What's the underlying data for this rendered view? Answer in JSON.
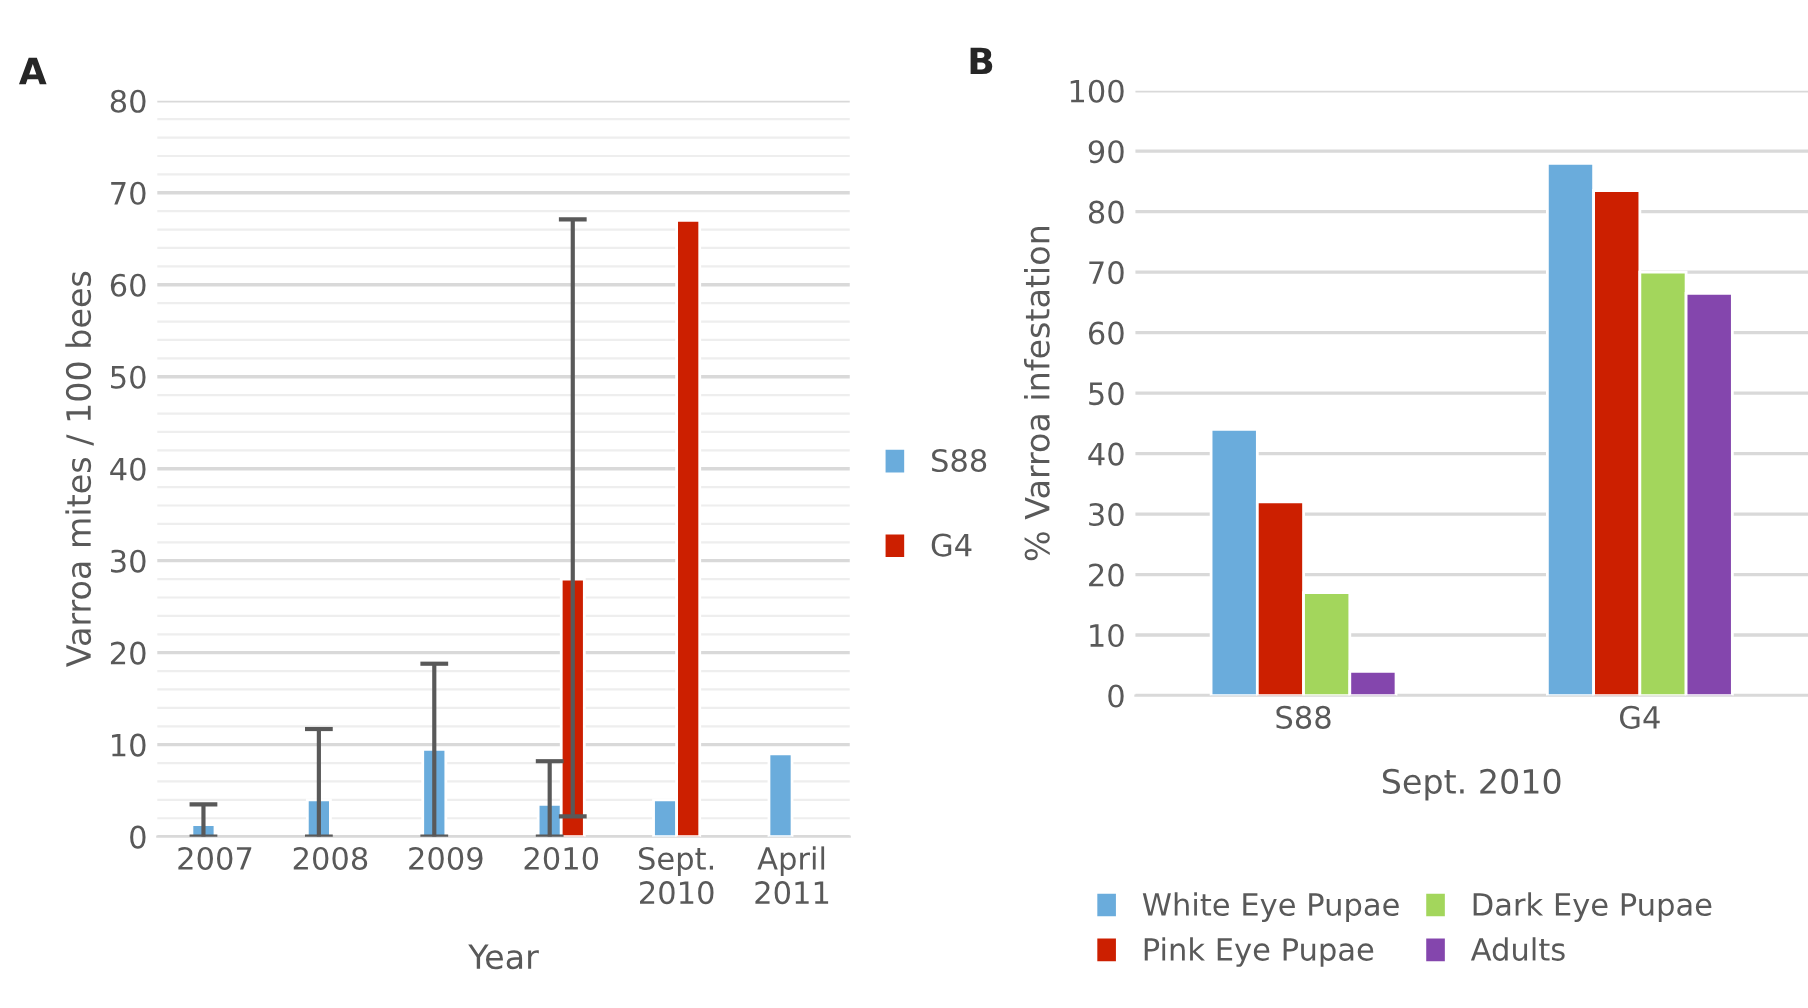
{
  "chart_data": [
    {
      "type": "bar",
      "title": "A",
      "xlabel": "Year",
      "ylabel": "Varroa mites / 100 bees",
      "categories": [
        "2007",
        "2008",
        "2009",
        "2010",
        "Sept.\n2010",
        "April\n2011"
      ],
      "series": [
        {
          "name": "S88",
          "color": "#6aacdc",
          "values": [
            1.3,
            4,
            9.5,
            3.5,
            4,
            9
          ],
          "errors": [
            [
              0,
              3.5
            ],
            [
              0,
              11.7
            ],
            [
              0,
              18.8
            ],
            [
              0,
              8.2
            ],
            null,
            null
          ]
        },
        {
          "name": "G4",
          "color": "#cc1f00",
          "values": [
            null,
            null,
            null,
            28,
            67,
            null
          ],
          "errors": [
            null,
            null,
            null,
            [
              2.2,
              67.1
            ],
            null,
            null
          ]
        }
      ],
      "ylim": [
        0,
        80
      ],
      "yticks": [
        0,
        {
          "value": 2,
          "label": null
        },
        {
          "value": 4,
          "label": null
        },
        {
          "value": 6,
          "label": null
        },
        {
          "value": 8,
          "label": null
        },
        10,
        {
          "value": 12,
          "label": null
        },
        {
          "value": 14,
          "label": null
        },
        {
          "value": 16,
          "label": null
        },
        {
          "value": 18,
          "label": null
        },
        20,
        {
          "value": 22,
          "label": null
        },
        {
          "value": 24,
          "label": null
        },
        {
          "value": 26,
          "label": null
        },
        {
          "value": 28,
          "label": null
        },
        30,
        {
          "value": 32,
          "label": null
        },
        {
          "value": 34,
          "label": null
        },
        {
          "value": 36,
          "label": null
        },
        {
          "value": 38,
          "label": null
        },
        40,
        {
          "value": 42,
          "label": null
        },
        {
          "value": 44,
          "label": null
        },
        {
          "value": 46,
          "label": null
        },
        {
          "value": 48,
          "label": null
        },
        50,
        {
          "value": 52,
          "label": null
        },
        {
          "value": 54,
          "label": null
        },
        {
          "value": 56,
          "label": null
        },
        {
          "value": 58,
          "label": null
        },
        60,
        {
          "value": 62,
          "label": null
        },
        {
          "value": 64,
          "label": null
        },
        {
          "value": 66,
          "label": null
        },
        {
          "value": 68,
          "label": null
        },
        70,
        {
          "value": 72,
          "label": null
        },
        {
          "value": 74,
          "label": null
        },
        {
          "value": 76,
          "label": null
        },
        {
          "value": 78,
          "label": null
        },
        80
      ],
      "grid": "y",
      "legend": "right"
    },
    {
      "type": "bar",
      "title": "B",
      "xlabel": "Sept. 2010",
      "ylabel": "% Varroa infestation",
      "categories": [
        "S88",
        "G4"
      ],
      "series": [
        {
          "name": "White Eye Pupae",
          "color": "#6aacdc",
          "values": [
            44,
            88
          ]
        },
        {
          "name": "Pink Eye Pupae",
          "color": "#cc1f00",
          "values": [
            32,
            83.5
          ]
        },
        {
          "name": "Dark Eye Pupae",
          "color": "#a3d65c",
          "values": [
            17,
            70
          ]
        },
        {
          "name": "Adults",
          "color": "#8446ad",
          "values": [
            4,
            66.5
          ]
        }
      ],
      "ylim": [
        0,
        100
      ],
      "yticks": [
        0,
        10,
        20,
        30,
        40,
        50,
        60,
        70,
        80,
        90,
        100
      ],
      "grid": "y",
      "legend": "bottom"
    }
  ]
}
